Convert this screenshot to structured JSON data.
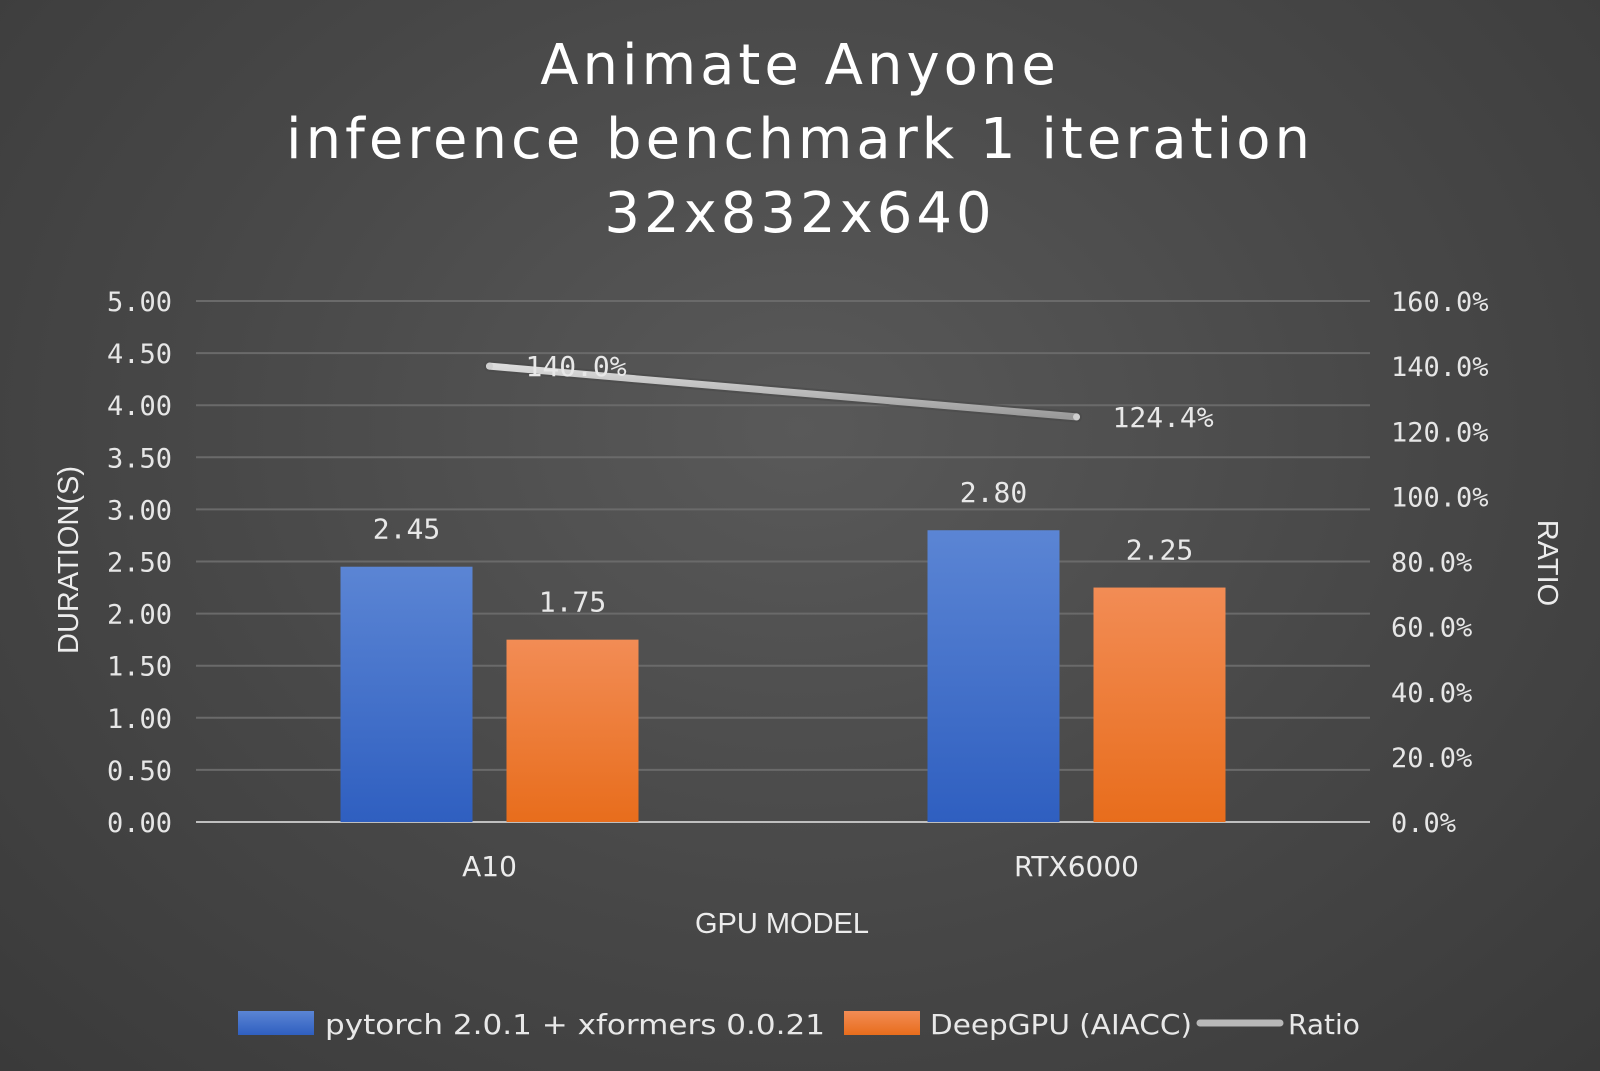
{
  "chart_data": {
    "type": "bar",
    "title_lines": [
      "Animate Anyone",
      "inference benchmark 1 iteration",
      "32x832x640"
    ],
    "categories": [
      "A10",
      "RTX6000"
    ],
    "xlabel": "GPU MODEL",
    "ylabel": "DURATION(S)",
    "y2label": "RATIO",
    "ylim": [
      0,
      5
    ],
    "y2lim": [
      0,
      160
    ],
    "yticks": [
      "0.00",
      "0.50",
      "1.00",
      "1.50",
      "2.00",
      "2.50",
      "3.00",
      "3.50",
      "4.00",
      "4.50",
      "5.00"
    ],
    "y2ticks": [
      "0.0%",
      "20.0%",
      "40.0%",
      "60.0%",
      "80.0%",
      "100.0%",
      "120.0%",
      "140.0%",
      "160.0%"
    ],
    "grid": true,
    "legend_position": "bottom",
    "series": [
      {
        "name": "pytorch 2.0.1 + xformers 0.0.21",
        "type": "bar",
        "axis": "left",
        "color": "#4472c4",
        "values": [
          2.45,
          2.8
        ],
        "labels": [
          "2.45",
          "2.80"
        ]
      },
      {
        "name": "DeepGPU (AIACC)",
        "type": "bar",
        "axis": "left",
        "color": "#ed7d31",
        "values": [
          1.75,
          2.25
        ],
        "labels": [
          "1.75",
          "2.25"
        ]
      },
      {
        "name": "Ratio",
        "type": "line",
        "axis": "right",
        "color": "#a5a5a5",
        "values": [
          140.0,
          124.4
        ],
        "labels": [
          "140.0%",
          "124.4%"
        ]
      }
    ]
  }
}
